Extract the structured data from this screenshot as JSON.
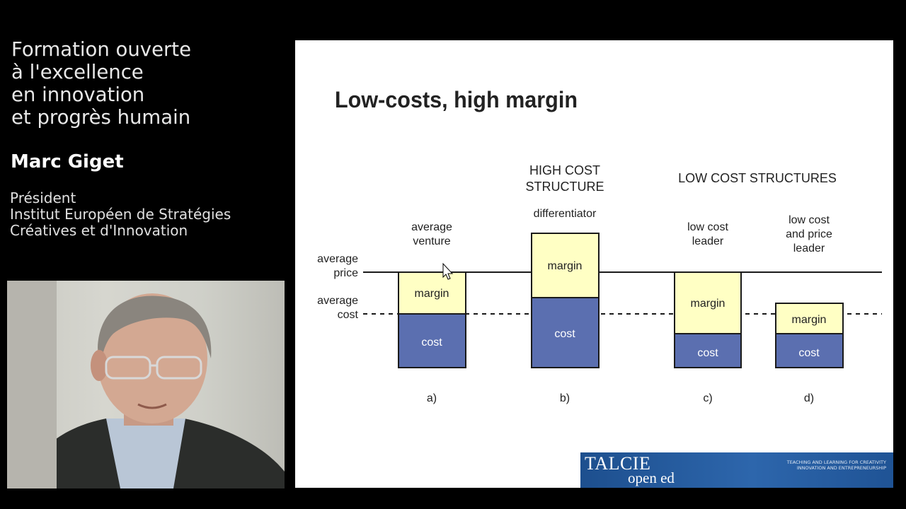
{
  "sidebar": {
    "course_title_lines": [
      "Formation ouverte",
      "à l'excellence",
      "en innovation",
      "et progrès humain"
    ],
    "speaker_name": "Marc Giget",
    "speaker_role_lines": [
      "Président",
      "Institut Européen de Stratégies",
      "Créatives et d'Innovation"
    ]
  },
  "slide": {
    "title": "Low-costs, high margin",
    "header_high_cost": [
      "HIGH COST",
      "STRUCTURE"
    ],
    "header_low_cost": "LOW COST STRUCTURES",
    "axis_labels": {
      "average_price": [
        "average",
        "price"
      ],
      "average_cost": [
        "average",
        "cost"
      ]
    },
    "columns": [
      {
        "caption": [
          "average",
          "venture"
        ],
        "margin_label": "margin",
        "cost_label": "cost",
        "letter": "a)"
      },
      {
        "caption": [
          "differentiator"
        ],
        "margin_label": "margin",
        "cost_label": "cost",
        "letter": "b)"
      },
      {
        "caption": [
          "low cost",
          "leader"
        ],
        "margin_label": "margin",
        "cost_label": "cost",
        "letter": "c)"
      },
      {
        "caption": [
          "low cost",
          "and price",
          "leader"
        ],
        "margin_label": "margin",
        "cost_label": "cost",
        "letter": "d)"
      }
    ],
    "colors": {
      "margin_fill": "#ffffc4",
      "cost_fill": "#5b6fb0",
      "outline": "#1a1a1a"
    }
  },
  "branding": {
    "logo": "TALCIE",
    "logo_sub": "open ed",
    "tagline_lines": [
      "Teaching and Learning for Creativity",
      "Innovation and Entrepreneurship"
    ]
  }
}
